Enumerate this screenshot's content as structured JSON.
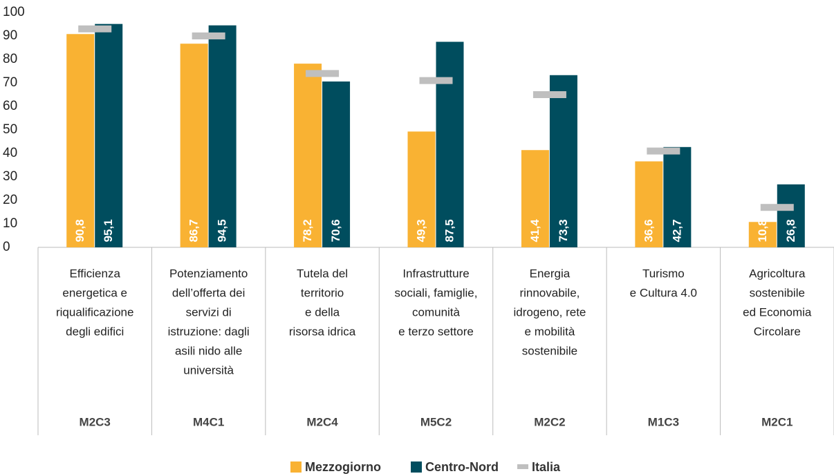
{
  "chart_data": {
    "type": "bar",
    "categories": [
      [
        "Efficienza",
        "energetica e",
        "riqualificazione",
        "degli edifici"
      ],
      [
        "Potenziamento",
        "dell’offerta dei",
        "servizi di",
        "istruzione: dagli",
        "asili nido alle",
        "università"
      ],
      [
        "Tutela del",
        "territorio",
        "e della",
        "risorsa idrica"
      ],
      [
        "Infrastrutture",
        "sociali, famiglie,",
        "comunità",
        "e terzo settore"
      ],
      [
        "Energia",
        "rinnovabile,",
        "idrogeno, rete",
        "e mobilità",
        "sostenibile"
      ],
      [
        "Turismo",
        "e Cultura 4.0"
      ],
      [
        "Agricoltura",
        "sostenibile",
        "ed Economia",
        "Circolare"
      ]
    ],
    "codes": [
      "M2C3",
      "M4C1",
      "M2C4",
      "M5C2",
      "M2C2",
      "M1C3",
      "M2C1"
    ],
    "series": [
      {
        "name": "Mezzogiorno",
        "color": "#f9b233",
        "values": [
          90.8,
          86.7,
          78.2,
          49.3,
          41.4,
          36.6,
          10.8
        ],
        "value_labels": [
          "90,8",
          "86,7",
          "78,2",
          "49,3",
          "41,4",
          "36,6",
          "10,8"
        ]
      },
      {
        "name": "Centro-Nord",
        "color": "#004d5e",
        "values": [
          95.1,
          94.5,
          70.6,
          87.5,
          73.3,
          42.7,
          26.8
        ],
        "value_labels": [
          "95,1",
          "94,5",
          "70,6",
          "87,5",
          "73,3",
          "42,7",
          "26,8"
        ]
      },
      {
        "name": "Italia",
        "color": "#bfbfbf",
        "marker": "dash",
        "values": [
          93,
          90,
          74,
          71,
          65,
          41,
          17
        ]
      }
    ],
    "ylim": [
      0,
      100
    ],
    "yticks": [
      0,
      10,
      20,
      30,
      40,
      50,
      60,
      70,
      80,
      90,
      100
    ],
    "grid": false
  }
}
